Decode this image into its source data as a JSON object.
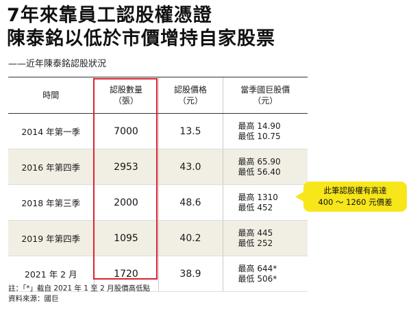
{
  "title": {
    "line1": "7年來靠員工認股權憑證",
    "line2": "陳泰銘以低於市價增持自家股票"
  },
  "subtitle": "——近年陳泰銘認股狀況",
  "table": {
    "headers": {
      "period": "時間",
      "qty_line1": "認股數量",
      "qty_line2": "（張）",
      "price_line1": "認股價格",
      "price_line2": "（元）",
      "range_line1": "當季國巨股價",
      "range_line2": "（元）"
    },
    "rows": [
      {
        "period": "2014 年第一季",
        "qty": "7000",
        "price": "13.5",
        "high": "最高 14.90",
        "low": "最低 10.75"
      },
      {
        "period": "2016 年第四季",
        "qty": "2953",
        "price": "43.0",
        "high": "最高 65.90",
        "low": "最低 56.40"
      },
      {
        "period": "2018 年第三季",
        "qty": "2000",
        "price": "48.6",
        "high": "最高 1310",
        "low": "最低 452"
      },
      {
        "period": "2019 年第四季",
        "qty": "1095",
        "price": "40.2",
        "high": "最高 445",
        "low": "最低 252"
      },
      {
        "period": "2021 年 2 月",
        "qty": "1720",
        "price": "38.9",
        "high": "最高 644*",
        "low": "最低 506*"
      }
    ]
  },
  "callout": {
    "line1": "此筆認股權有高達",
    "line2": "400 ～ 1260 元價差"
  },
  "notes": {
    "note": "註：「*」截自 2021 年 1 至 2 月股價高低點",
    "source": "資料來源：國巨"
  },
  "colors": {
    "highlight_border": "#d9232e",
    "callout_bg": "#f6e61a",
    "row_shade": "#f1eee4"
  }
}
